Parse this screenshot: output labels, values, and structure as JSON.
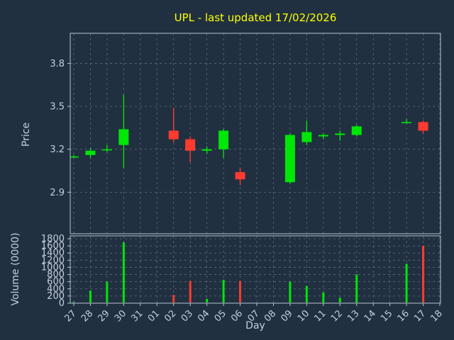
{
  "title": "UPL - last updated 17/02/2026",
  "colors": {
    "figure_background": "#203040",
    "axes_background": "#203040",
    "title": "#ffff00",
    "tick_label": "#c3cede",
    "axis_label": "#c3cede",
    "grid": "#a9b6c6",
    "spine": "#b6c2d0",
    "up": "#00e606",
    "down": "#ff3b30"
  },
  "chart_data": {
    "type": "candlestick",
    "title": "UPL - last updated 17/02/2026",
    "xlabel": "Day",
    "ylabel": "Price",
    "ylabel2": "Volume (0000)",
    "legend": "none",
    "grid": "dashed",
    "x_ticks": [
      "27",
      "28",
      "29",
      "30",
      "31",
      "01",
      "02",
      "03",
      "04",
      "05",
      "06",
      "07",
      "08",
      "09",
      "10",
      "11",
      "12",
      "13",
      "14",
      "15",
      "16",
      "17",
      "18"
    ],
    "price_ticks": [
      2.9,
      3.2,
      3.5,
      3.8
    ],
    "price_ylim": [
      2.61,
      4.01
    ],
    "volume_ticks": [
      0,
      200,
      400,
      600,
      800,
      1000,
      1200,
      1400,
      1600,
      1800
    ],
    "volume_ylim": [
      0,
      1880
    ],
    "candles": [
      {
        "day": "27",
        "open": 3.15,
        "high": 3.16,
        "low": 3.14,
        "close": 3.15,
        "volume": 40
      },
      {
        "day": "28",
        "open": 3.16,
        "high": 3.21,
        "low": 3.14,
        "close": 3.19,
        "volume": 350
      },
      {
        "day": "29",
        "open": 3.2,
        "high": 3.23,
        "low": 3.18,
        "close": 3.2,
        "volume": 600
      },
      {
        "day": "30",
        "open": 3.23,
        "high": 3.58,
        "low": 3.07,
        "close": 3.34,
        "volume": 1700
      },
      {
        "day": "02",
        "open": 3.33,
        "high": 3.49,
        "low": 3.25,
        "close": 3.27,
        "volume": 230
      },
      {
        "day": "03",
        "open": 3.27,
        "high": 3.29,
        "low": 3.11,
        "close": 3.19,
        "volume": 620
      },
      {
        "day": "04",
        "open": 3.19,
        "high": 3.22,
        "low": 3.17,
        "close": 3.2,
        "volume": 120
      },
      {
        "day": "05",
        "open": 3.2,
        "high": 3.34,
        "low": 3.14,
        "close": 3.33,
        "volume": 650
      },
      {
        "day": "06",
        "open": 3.04,
        "high": 3.07,
        "low": 2.95,
        "close": 2.99,
        "volume": 620
      },
      {
        "day": "09",
        "open": 2.97,
        "high": 3.31,
        "low": 2.96,
        "close": 3.3,
        "volume": 600
      },
      {
        "day": "10",
        "open": 3.25,
        "high": 3.4,
        "low": 3.23,
        "close": 3.32,
        "volume": 480
      },
      {
        "day": "11",
        "open": 3.29,
        "high": 3.31,
        "low": 3.27,
        "close": 3.3,
        "volume": 300
      },
      {
        "day": "12",
        "open": 3.3,
        "high": 3.33,
        "low": 3.26,
        "close": 3.31,
        "volume": 150
      },
      {
        "day": "13",
        "open": 3.3,
        "high": 3.37,
        "low": 3.29,
        "close": 3.36,
        "volume": 800
      },
      {
        "day": "16",
        "open": 3.39,
        "high": 3.41,
        "low": 3.38,
        "close": 3.39,
        "volume": 1100
      },
      {
        "day": "17",
        "open": 3.39,
        "high": 3.4,
        "low": 3.31,
        "close": 3.33,
        "volume": 1600
      }
    ]
  }
}
